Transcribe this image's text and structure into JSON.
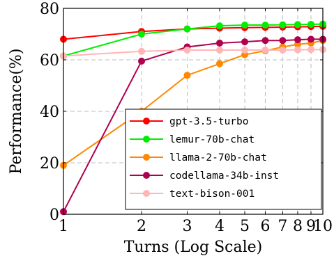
{
  "chart_data": {
    "type": "line",
    "xlabel": "Turns (Log Scale)",
    "ylabel": "Performance(%)",
    "x_scale": "log",
    "x": [
      1,
      2,
      3,
      4,
      5,
      6,
      7,
      8,
      9,
      10
    ],
    "xticks": [
      "1",
      "2",
      "3",
      "4",
      "5",
      "6",
      "7",
      "8",
      "9",
      "10"
    ],
    "xlim": [
      1,
      10
    ],
    "ylim": [
      0,
      80
    ],
    "yticks": [
      0,
      20,
      40,
      60,
      80
    ],
    "grid": true,
    "legend_position": "bottom-right",
    "series": [
      {
        "name": "gpt-3.5-turbo",
        "color": "#ff0000",
        "values": [
          68.0,
          71.0,
          72.0,
          72.3,
          72.5,
          72.6,
          72.7,
          72.8,
          72.9,
          73.0
        ]
      },
      {
        "name": "lemur-70b-chat",
        "color": "#00ee00",
        "values": [
          61.5,
          70.0,
          72.0,
          73.2,
          73.5,
          73.5,
          73.6,
          73.7,
          73.8,
          73.9
        ]
      },
      {
        "name": "llama-2-70b-chat",
        "color": "#ff8800",
        "values": [
          19.0,
          40.0,
          54.0,
          58.5,
          62.0,
          63.5,
          65.0,
          66.0,
          66.5,
          67.5
        ]
      },
      {
        "name": "codellama-34b-inst",
        "color": "#b0004f",
        "values": [
          1.0,
          59.5,
          65.0,
          66.5,
          67.0,
          67.5,
          67.5,
          67.8,
          68.0,
          68.0
        ]
      },
      {
        "name": "text-bison-001",
        "color": "#ffb6b6",
        "values": [
          61.5,
          63.3,
          63.8,
          63.8,
          63.8,
          63.8,
          63.8,
          63.9,
          64.0,
          64.0
        ]
      }
    ]
  }
}
